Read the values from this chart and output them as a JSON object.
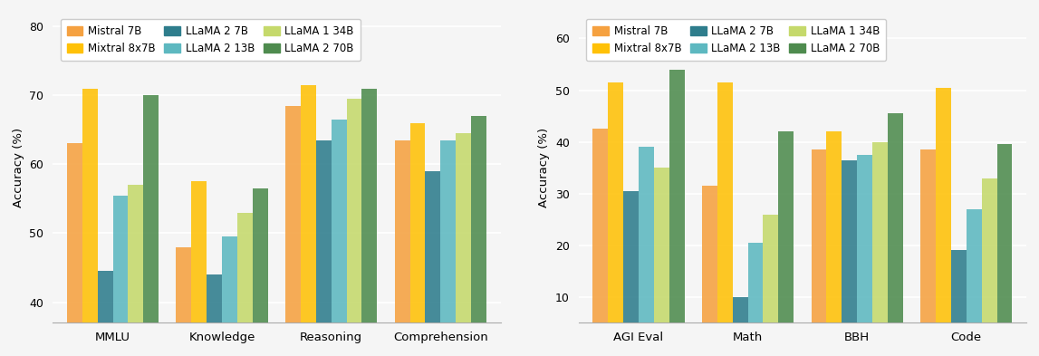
{
  "left_chart": {
    "categories": [
      "MMLU",
      "Knowledge",
      "Reasoning",
      "Comprehension"
    ],
    "series": {
      "Mistral 7B": [
        63,
        48,
        68.5,
        63.5
      ],
      "Mixtral 8x7B": [
        71,
        57.5,
        71.5,
        66
      ],
      "LLaMA 2 7B": [
        44.5,
        44,
        63.5,
        59
      ],
      "LLaMA 2 13B": [
        55.5,
        49.5,
        66.5,
        63.5
      ],
      "LLaMA 1 34B": [
        57,
        53,
        69.5,
        64.5
      ],
      "LLaMA 2 70B": [
        70,
        56.5,
        71,
        67
      ]
    },
    "ylabel": "Accuracy (%)",
    "ylim": [
      37,
      82
    ],
    "yticks": [
      40,
      50,
      60,
      70,
      80
    ]
  },
  "right_chart": {
    "categories": [
      "AGI Eval",
      "Math",
      "BBH",
      "Code"
    ],
    "series": {
      "Mistral 7B": [
        42.5,
        31.5,
        38.5,
        38.5
      ],
      "Mixtral 8x7B": [
        51.5,
        51.5,
        42,
        50.5
      ],
      "LLaMA 2 7B": [
        30.5,
        10,
        36.5,
        19
      ],
      "LLaMA 2 13B": [
        39,
        20.5,
        37.5,
        27
      ],
      "LLaMA 1 34B": [
        35,
        26,
        40,
        33
      ],
      "LLaMA 2 70B": [
        54,
        42,
        45.5,
        39.5
      ]
    },
    "ylabel": "Accuracy (%)",
    "ylim": [
      5,
      65
    ],
    "yticks": [
      10,
      20,
      30,
      40,
      50,
      60
    ]
  },
  "colors": {
    "Mistral 7B": "#F5A140",
    "Mixtral 8x7B": "#FFC107",
    "LLaMA 2 7B": "#2E7D8C",
    "LLaMA 2 13B": "#5DB8C0",
    "LLaMA 1 34B": "#C5D96B",
    "LLaMA 2 70B": "#4E8B4E"
  },
  "series_order": [
    "Mistral 7B",
    "Mixtral 8x7B",
    "LLaMA 2 7B",
    "LLaMA 2 13B",
    "LLaMA 1 34B",
    "LLaMA 2 70B"
  ],
  "background_color": "#F5F5F5",
  "bar_width": 0.14,
  "legend_fontsize": 8.5,
  "axis_fontsize": 9.5,
  "tick_fontsize": 9.0
}
